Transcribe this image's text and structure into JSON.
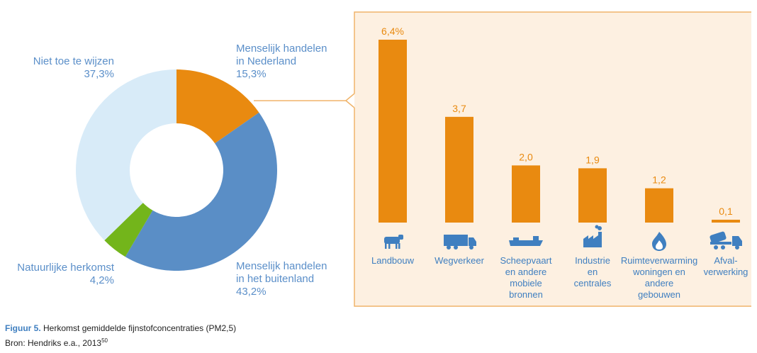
{
  "colors": {
    "nl": "#e98a10",
    "abroad": "#5a8ec6",
    "natural": "#73b51b",
    "unknown": "#d8ebf8",
    "panel_bg": "#fdf0e1",
    "panel_border": "#f0b46a",
    "bar": "#e98a10",
    "label_blue": "#5b8fc9",
    "category_blue": "#3f7fc0",
    "icon_blue": "#3f7fc0"
  },
  "chart_data": [
    {
      "type": "pie",
      "subtype": "donut",
      "slices": [
        {
          "label_lines": [
            "Menselijk handelen",
            "in Nederland"
          ],
          "value_label": "15,3%",
          "value": 15.3,
          "color_key": "nl"
        },
        {
          "label_lines": [
            "Menselijk handelen",
            "in het buitenland"
          ],
          "value_label": "43,2%",
          "value": 43.2,
          "color_key": "abroad"
        },
        {
          "label_lines": [
            "Natuurlijke herkomst"
          ],
          "value_label": "4,2%",
          "value": 4.2,
          "color_key": "natural"
        },
        {
          "label_lines": [
            "Niet toe te wijzen"
          ],
          "value_label": "37,3%",
          "value": 37.3,
          "color_key": "unknown"
        }
      ]
    },
    {
      "type": "bar",
      "detail_of": "Menselijk handelen in Nederland",
      "categories": [
        [
          "Landbouw"
        ],
        [
          "Wegverkeer"
        ],
        [
          "Scheepvaart",
          "en andere",
          "mobiele",
          "bronnen"
        ],
        [
          "Industrie",
          "en",
          "centrales"
        ],
        [
          "Ruimteverwarming",
          "woningen en",
          "andere",
          "gebouwen"
        ],
        [
          "Afval-",
          "verwerking"
        ]
      ],
      "icons": [
        "cow-icon",
        "truck-icon",
        "ship-icon",
        "factory-icon",
        "flame-icon",
        "dump-truck-icon"
      ],
      "values": [
        6.4,
        3.7,
        2.0,
        1.9,
        1.2,
        0.1
      ],
      "value_labels": [
        "6,4%",
        "3,7",
        "2,0",
        "1,9",
        "1,2",
        "0,1"
      ],
      "ylim": [
        0,
        6.4
      ],
      "grid": false
    }
  ],
  "caption": {
    "figure_tag": "Figuur 5.",
    "title": "Herkomst gemiddelde fijnstofconcentraties (PM2,5)",
    "source": "Bron: Hendriks e.a., 2013",
    "footnote": "50"
  }
}
